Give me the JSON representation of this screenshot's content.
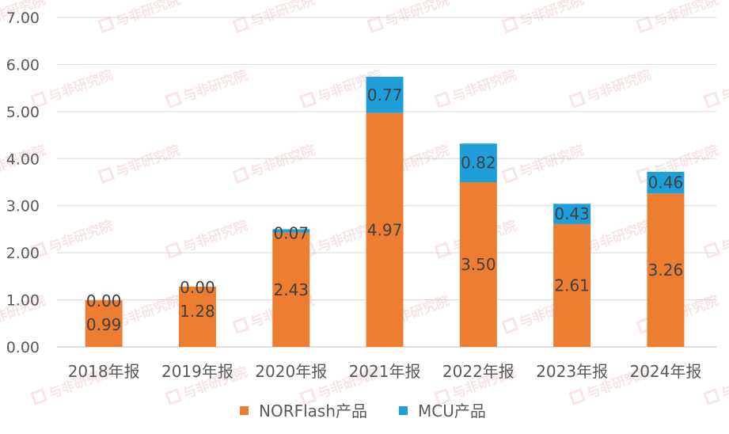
{
  "watermark": {
    "text": "与非研究院"
  },
  "chart_data": {
    "type": "bar",
    "stacked": true,
    "categories": [
      "2018年报",
      "2019年报",
      "2020年报",
      "2021年报",
      "2022年报",
      "2023年报",
      "2024年报"
    ],
    "series": [
      {
        "name": "NORFlash产品",
        "color": "#ED7D31",
        "values": [
          0.99,
          1.28,
          2.43,
          4.97,
          3.5,
          2.61,
          3.26
        ],
        "labels": [
          "0.99",
          "1.28",
          "2.43",
          "4.97",
          "3.50",
          "2.61",
          "3.26"
        ]
      },
      {
        "name": "MCU产品",
        "color": "#1E9FD9",
        "values": [
          0.0,
          0.0,
          0.07,
          0.77,
          0.82,
          0.43,
          0.46
        ],
        "labels": [
          "0.00",
          "0.00",
          "0.07",
          "0.77",
          "0.82",
          "0.43",
          "0.46"
        ]
      }
    ],
    "ylim": [
      0,
      7
    ],
    "yticks": [
      "0.00",
      "1.00",
      "2.00",
      "3.00",
      "4.00",
      "5.00",
      "6.00",
      "7.00"
    ],
    "grid": true,
    "legend_position": "bottom",
    "title": "",
    "xlabel": "",
    "ylabel": ""
  }
}
